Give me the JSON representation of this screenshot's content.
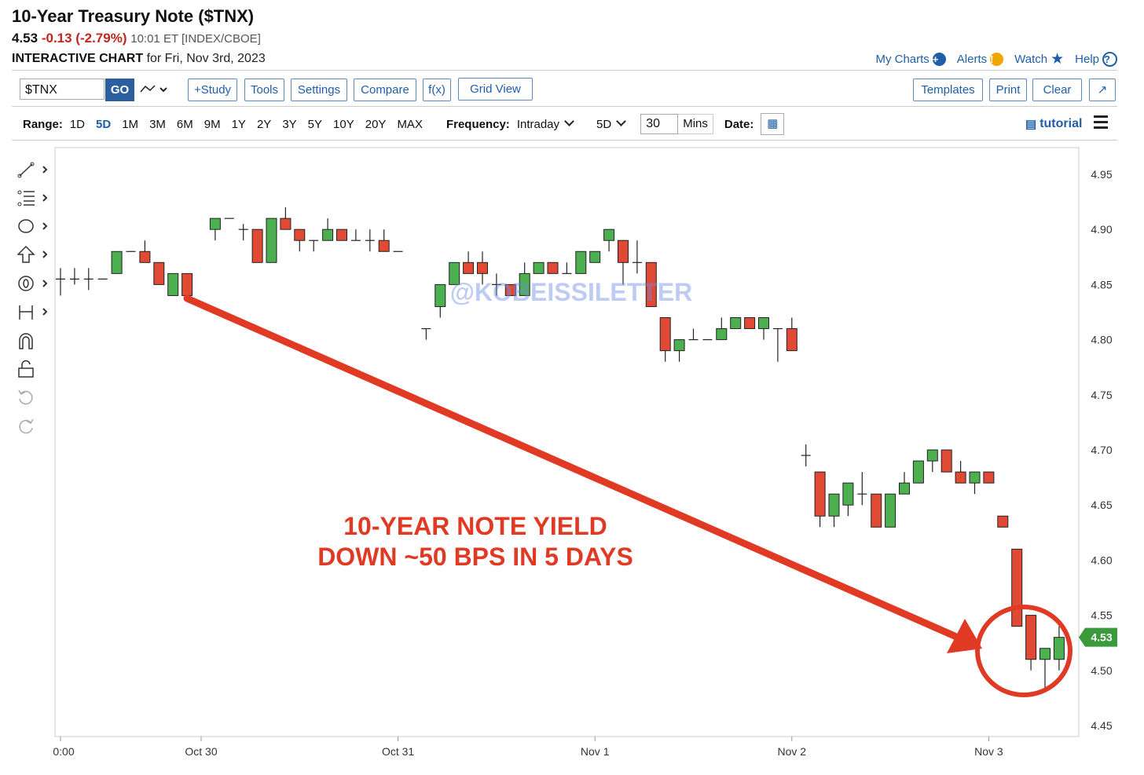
{
  "header": {
    "title": "10-Year Treasury Note ($TNX)",
    "last": "4.53",
    "change": "-0.13 (-2.79%)",
    "meta": "10:01 ET [INDEX/CBOE]",
    "subtitle_bold": "INTERACTIVE CHART",
    "subtitle_rest": "for Fri, Nov 3rd, 2023"
  },
  "toplinks": {
    "my_charts": "My Charts",
    "alerts": "Alerts",
    "watch": "Watch",
    "help": "Help"
  },
  "toolbar": {
    "symbol": "$TNX",
    "go": "GO",
    "study": "+Study",
    "tools": "Tools",
    "settings": "Settings",
    "compare": "Compare",
    "fx": "f(x)",
    "gridview": "Grid View",
    "templates": "Templates",
    "print": "Print",
    "clear": "Clear",
    "expand": "↗"
  },
  "rangebar": {
    "range_label": "Range:",
    "ranges": [
      "1D",
      "5D",
      "1M",
      "3M",
      "6M",
      "9M",
      "1Y",
      "2Y",
      "3Y",
      "5Y",
      "10Y",
      "20Y",
      "MAX"
    ],
    "selected": "5D",
    "frequency_label": "Frequency:",
    "frequency": "Intraday",
    "period": "5D",
    "interval_value": "30",
    "interval_unit": "Mins",
    "date_label": "Date:",
    "tutorial": "tutorial"
  },
  "colors": {
    "up": "#4caf50",
    "down": "#e04a35",
    "annotation": "#e03a25",
    "price_tag": "#3a9a3c",
    "link": "#1f5fa8"
  },
  "chart_data": {
    "type": "candlestick",
    "title": "",
    "ylim": [
      4.45,
      4.96
    ],
    "yticks": [
      "4.95",
      "4.90",
      "4.85",
      "4.80",
      "4.75",
      "4.70",
      "4.65",
      "4.60",
      "4.55",
      "4.50",
      "4.45"
    ],
    "xticks": [
      {
        "label": "0:00",
        "index": 0
      },
      {
        "label": "Oct 30",
        "index": 10
      },
      {
        "label": "Oct 31",
        "index": 24
      },
      {
        "label": "Nov 1",
        "index": 38
      },
      {
        "label": "Nov 2",
        "index": 52
      },
      {
        "label": "Nov 3",
        "index": 66
      }
    ],
    "last_price": "4.53",
    "watermark": "@KOBEISSILETTER",
    "annotation": [
      "10-YEAR NOTE YIELD",
      "DOWN ~50 BPS IN 5 DAYS"
    ],
    "candles": [
      {
        "o": 4.855,
        "h": 4.865,
        "l": 4.84,
        "c": 4.855
      },
      {
        "o": 4.855,
        "h": 4.865,
        "l": 4.85,
        "c": 4.855
      },
      {
        "o": 4.855,
        "h": 4.865,
        "l": 4.845,
        "c": 4.855
      },
      {
        "o": 4.855,
        "h": 4.855,
        "l": 4.855,
        "c": 4.855
      },
      {
        "o": 4.86,
        "h": 4.88,
        "l": 4.86,
        "c": 4.88
      },
      {
        "o": 4.88,
        "h": 4.88,
        "l": 4.88,
        "c": 4.88
      },
      {
        "o": 4.88,
        "h": 4.89,
        "l": 4.87,
        "c": 4.87
      },
      {
        "o": 4.87,
        "h": 4.87,
        "l": 4.85,
        "c": 4.85
      },
      {
        "o": 4.84,
        "h": 4.86,
        "l": 4.84,
        "c": 4.86
      },
      {
        "o": 4.86,
        "h": 4.86,
        "l": 4.84,
        "c": 4.84
      },
      {
        "o": null
      },
      {
        "o": 4.9,
        "h": 4.91,
        "l": 4.89,
        "c": 4.91
      },
      {
        "o": 4.91,
        "h": 4.91,
        "l": 4.91,
        "c": 4.91
      },
      {
        "o": 4.9,
        "h": 4.905,
        "l": 4.89,
        "c": 4.9
      },
      {
        "o": 4.9,
        "h": 4.9,
        "l": 4.87,
        "c": 4.87
      },
      {
        "o": 4.87,
        "h": 4.91,
        "l": 4.87,
        "c": 4.91
      },
      {
        "o": 4.91,
        "h": 4.92,
        "l": 4.9,
        "c": 4.9
      },
      {
        "o": 4.9,
        "h": 4.9,
        "l": 4.88,
        "c": 4.89
      },
      {
        "o": 4.89,
        "h": 4.89,
        "l": 4.88,
        "c": 4.89
      },
      {
        "o": 4.89,
        "h": 4.91,
        "l": 4.89,
        "c": 4.9
      },
      {
        "o": 4.9,
        "h": 4.9,
        "l": 4.89,
        "c": 4.89
      },
      {
        "o": 4.89,
        "h": 4.9,
        "l": 4.89,
        "c": 4.89
      },
      {
        "o": 4.89,
        "h": 4.9,
        "l": 4.88,
        "c": 4.89
      },
      {
        "o": 4.89,
        "h": 4.9,
        "l": 4.88,
        "c": 4.88
      },
      {
        "o": 4.88,
        "h": 4.88,
        "l": 4.88,
        "c": 4.88
      },
      {
        "o": null
      },
      {
        "o": 4.81,
        "h": 4.81,
        "l": 4.8,
        "c": 4.81
      },
      {
        "o": 4.83,
        "h": 4.85,
        "l": 4.82,
        "c": 4.85
      },
      {
        "o": 4.85,
        "h": 4.87,
        "l": 4.85,
        "c": 4.87
      },
      {
        "o": 4.87,
        "h": 4.88,
        "l": 4.86,
        "c": 4.86
      },
      {
        "o": 4.87,
        "h": 4.88,
        "l": 4.85,
        "c": 4.86
      },
      {
        "o": 4.85,
        "h": 4.86,
        "l": 4.84,
        "c": 4.85
      },
      {
        "o": 4.85,
        "h": 4.85,
        "l": 4.84,
        "c": 4.84
      },
      {
        "o": 4.84,
        "h": 4.87,
        "l": 4.84,
        "c": 4.86
      },
      {
        "o": 4.86,
        "h": 4.87,
        "l": 4.86,
        "c": 4.87
      },
      {
        "o": 4.87,
        "h": 4.87,
        "l": 4.86,
        "c": 4.86
      },
      {
        "o": 4.86,
        "h": 4.87,
        "l": 4.86,
        "c": 4.86
      },
      {
        "o": 4.86,
        "h": 4.88,
        "l": 4.86,
        "c": 4.88
      },
      {
        "o": 4.87,
        "h": 4.88,
        "l": 4.87,
        "c": 4.88
      },
      {
        "o": 4.89,
        "h": 4.9,
        "l": 4.88,
        "c": 4.9
      },
      {
        "o": 4.89,
        "h": 4.89,
        "l": 4.85,
        "c": 4.87
      },
      {
        "o": 4.87,
        "h": 4.89,
        "l": 4.86,
        "c": 4.87
      },
      {
        "o": 4.87,
        "h": 4.87,
        "l": 4.83,
        "c": 4.83
      },
      {
        "o": 4.82,
        "h": 4.82,
        "l": 4.78,
        "c": 4.79
      },
      {
        "o": 4.79,
        "h": 4.8,
        "l": 4.78,
        "c": 4.8
      },
      {
        "o": 4.8,
        "h": 4.81,
        "l": 4.8,
        "c": 4.8
      },
      {
        "o": 4.8,
        "h": 4.8,
        "l": 4.8,
        "c": 4.8
      },
      {
        "o": 4.8,
        "h": 4.82,
        "l": 4.8,
        "c": 4.81
      },
      {
        "o": 4.81,
        "h": 4.82,
        "l": 4.81,
        "c": 4.82
      },
      {
        "o": 4.82,
        "h": 4.82,
        "l": 4.81,
        "c": 4.81
      },
      {
        "o": 4.81,
        "h": 4.82,
        "l": 4.8,
        "c": 4.82
      },
      {
        "o": 4.81,
        "h": 4.81,
        "l": 4.78,
        "c": 4.81
      },
      {
        "o": 4.81,
        "h": 4.82,
        "l": 4.79,
        "c": 4.79
      },
      {
        "o": 4.695,
        "h": 4.705,
        "l": 4.685,
        "c": 4.695
      },
      {
        "o": 4.68,
        "h": 4.68,
        "l": 4.63,
        "c": 4.64
      },
      {
        "o": 4.64,
        "h": 4.66,
        "l": 4.63,
        "c": 4.66
      },
      {
        "o": 4.65,
        "h": 4.67,
        "l": 4.64,
        "c": 4.67
      },
      {
        "o": 4.66,
        "h": 4.68,
        "l": 4.65,
        "c": 4.66
      },
      {
        "o": 4.66,
        "h": 4.66,
        "l": 4.63,
        "c": 4.63
      },
      {
        "o": 4.63,
        "h": 4.66,
        "l": 4.63,
        "c": 4.66
      },
      {
        "o": 4.66,
        "h": 4.68,
        "l": 4.66,
        "c": 4.67
      },
      {
        "o": 4.67,
        "h": 4.69,
        "l": 4.67,
        "c": 4.69
      },
      {
        "o": 4.69,
        "h": 4.7,
        "l": 4.68,
        "c": 4.7
      },
      {
        "o": 4.7,
        "h": 4.7,
        "l": 4.68,
        "c": 4.68
      },
      {
        "o": 4.68,
        "h": 4.69,
        "l": 4.67,
        "c": 4.67
      },
      {
        "o": 4.67,
        "h": 4.68,
        "l": 4.66,
        "c": 4.68
      },
      {
        "o": 4.68,
        "h": 4.68,
        "l": 4.67,
        "c": 4.67
      },
      {
        "o": 4.64,
        "h": 4.64,
        "l": 4.63,
        "c": 4.63
      },
      {
        "o": 4.61,
        "h": 4.61,
        "l": 4.54,
        "c": 4.54
      },
      {
        "o": 4.55,
        "h": 4.55,
        "l": 4.5,
        "c": 4.51
      },
      {
        "o": 4.51,
        "h": 4.52,
        "l": 4.48,
        "c": 4.52
      },
      {
        "o": 4.51,
        "h": 4.54,
        "l": 4.5,
        "c": 4.53
      }
    ]
  }
}
